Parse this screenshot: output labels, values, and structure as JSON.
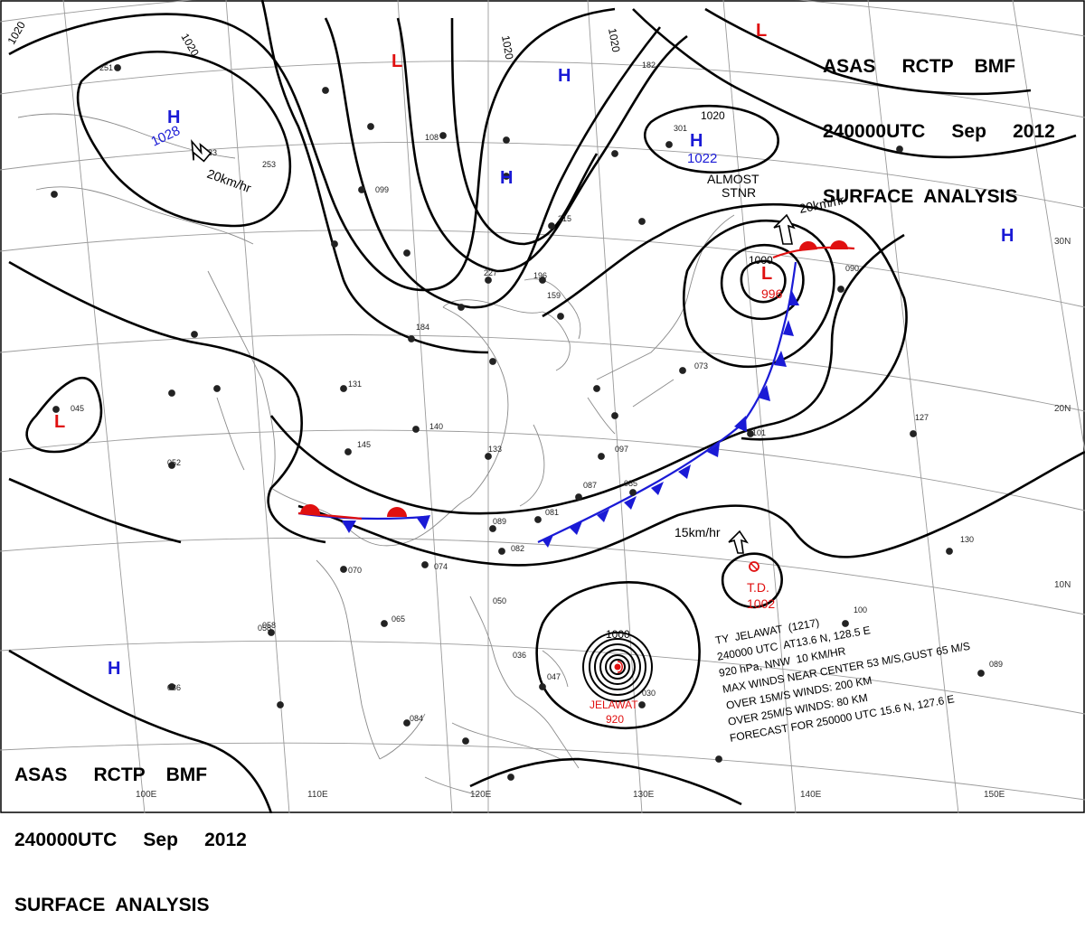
{
  "header": {
    "line1": "ASAS     RCTP    BMF",
    "line2": "240000UTC     Sep     2012",
    "line3": "SURFACE  ANALYSIS"
  },
  "isobar_labels": [
    "1020",
    "1020",
    "1020",
    "1020",
    "1020",
    "1000",
    "1000",
    "996",
    "1002"
  ],
  "pressure_centers": {
    "highs": [
      {
        "symbol": "H",
        "value": "1028"
      },
      {
        "symbol": "H",
        "value": "1022"
      },
      {
        "symbol": "H",
        "value": ""
      },
      {
        "symbol": "H",
        "value": ""
      },
      {
        "symbol": "H",
        "value": ""
      },
      {
        "symbol": "H",
        "value": ""
      }
    ],
    "lows": [
      {
        "symbol": "L",
        "value": ""
      },
      {
        "symbol": "L",
        "value": ""
      },
      {
        "symbol": "L",
        "value": ""
      },
      {
        "symbol": "L",
        "value": "996"
      }
    ]
  },
  "motion_labels": [
    "20km/hr",
    "20km/hr",
    "15km/hr",
    "ALMOST",
    "STNR"
  ],
  "tropical_depression": {
    "label": "T.D.",
    "pressure": "1002"
  },
  "typhoon": {
    "name": "JELAWAT",
    "pressure": "920"
  },
  "typhoon_info": [
    "TY  JELAWAT  (1217)",
    "240000 UTC  AT13.6 N, 128.5 E",
    "920 hPa, NNW  10 KM/HR",
    "MAX WINDS NEAR CENTER 53 M/S,GUST 65 M/S",
    "OVER 15M/S WINDS: 200 KM",
    "OVER 25M/S WINDS: 80 KM",
    "FORECAST FOR 250000 UTC 15.6 N, 127.6 E"
  ],
  "lat_labels": [
    "30N",
    "20N",
    "10N"
  ],
  "lon_labels": [
    "100E",
    "110E",
    "120E",
    "130E",
    "140E",
    "150E"
  ],
  "station_samples": [
    "251",
    "233",
    "253",
    "099",
    "108",
    "182",
    "301",
    "227",
    "196",
    "184",
    "131",
    "140",
    "145",
    "133",
    "097",
    "085",
    "087",
    "081",
    "089",
    "082",
    "070",
    "074",
    "065",
    "058",
    "086",
    "084",
    "047",
    "030",
    "073",
    "101",
    "127",
    "090",
    "045",
    "052",
    "058",
    "050",
    "036",
    "130",
    "089",
    "100",
    "159",
    "215"
  ],
  "colors": {
    "high": "#1a1ad6",
    "low": "#e01010",
    "isobar": "#000000",
    "map": "#8a8a8a",
    "grid": "#9a9a9a"
  }
}
